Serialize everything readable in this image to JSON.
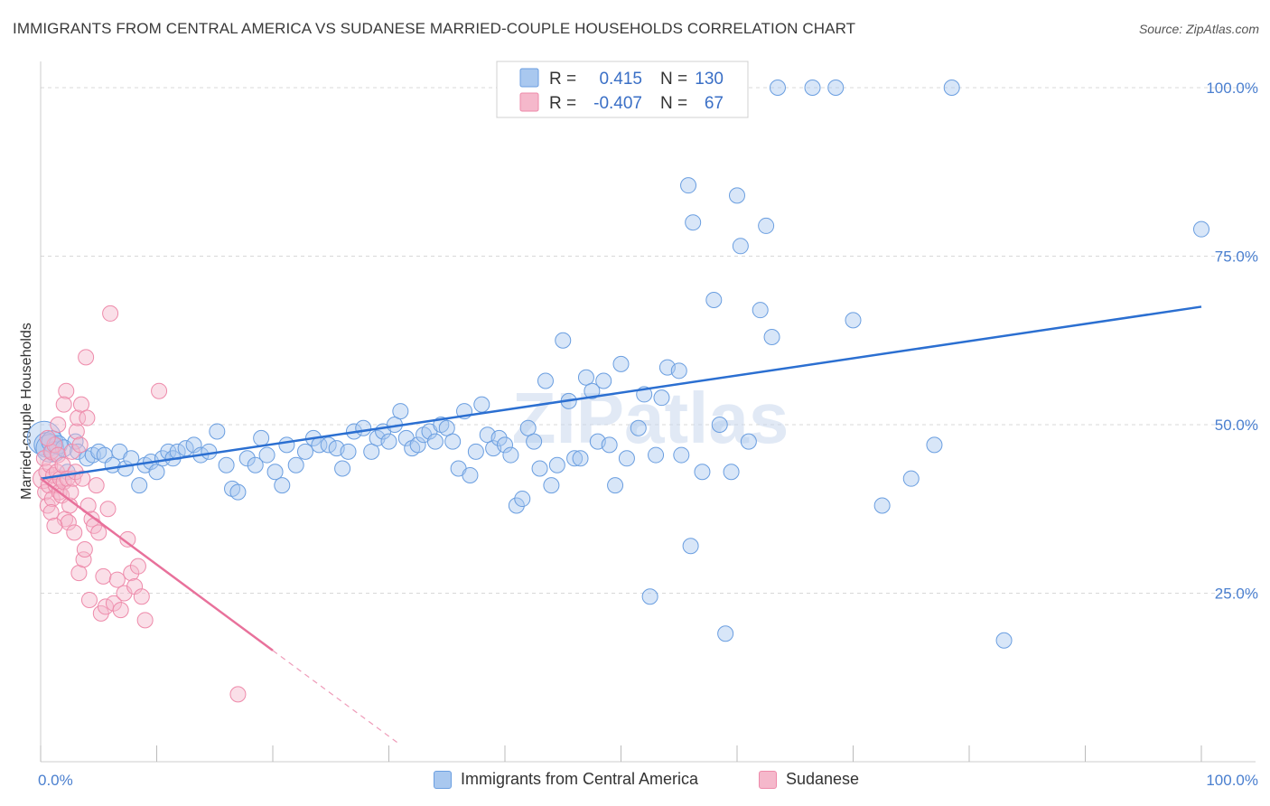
{
  "title": "IMMIGRANTS FROM CENTRAL AMERICA VS SUDANESE MARRIED-COUPLE HOUSEHOLDS CORRELATION CHART",
  "source": "Source: ZipAtlas.com",
  "watermark": "ZIPatlas",
  "colors": {
    "blue_fill": "#a9c8ef",
    "blue_stroke": "#6a9ee0",
    "blue_line": "#2b6fd1",
    "pink_fill": "#f5b8cb",
    "pink_stroke": "#ee8aaa",
    "pink_line": "#e8719b",
    "grid": "#d8d8d8",
    "tick_label": "#4a7fcf"
  },
  "legend": {
    "rows": [
      {
        "r_label": "R =",
        "r_value": "0.415",
        "n_label": "N =",
        "n_value": "130"
      },
      {
        "r_label": "R =",
        "r_value": "-0.407",
        "n_label": "N =",
        "n_value": "67"
      }
    ]
  },
  "bottom_legend": [
    {
      "name": "Immigrants from Central America"
    },
    {
      "name": "Sudanese"
    }
  ],
  "chart_data": {
    "type": "scatter",
    "title": "IMMIGRANTS FROM CENTRAL AMERICA VS SUDANESE MARRIED-COUPLE HOUSEHOLDS CORRELATION CHART",
    "xlabel": "",
    "ylabel": "Married-couple Households",
    "xlim": [
      0,
      100
    ],
    "ylim": [
      0,
      105
    ],
    "x_tick_labels": [
      "0.0%",
      "100.0%"
    ],
    "y_ticks": [
      25,
      50,
      75,
      100
    ],
    "y_tick_labels": [
      "25.0%",
      "50.0%",
      "75.0%",
      "100.0%"
    ],
    "grid": "horizontal dashed",
    "legend_position": "top-center",
    "series": [
      {
        "name": "Immigrants from Central America",
        "color": "#a9c8ef",
        "r": 0.415,
        "n": 130,
        "trend": {
          "x": [
            0,
            100
          ],
          "y": [
            42.0,
            67.5
          ],
          "style": "solid"
        },
        "points": [
          [
            0.3,
            48,
            2.2
          ],
          [
            0.5,
            47,
            1.6
          ],
          [
            0.8,
            46.5,
            1.8
          ],
          [
            1.0,
            47.5,
            1.4
          ],
          [
            1.2,
            46,
            1.3
          ],
          [
            1.5,
            47,
            1.2
          ],
          [
            2.0,
            46.5,
            1.1
          ],
          [
            2.3,
            43,
            1
          ],
          [
            3.0,
            47.5,
            1
          ],
          [
            3.2,
            46,
            1
          ],
          [
            4.0,
            45,
            1
          ],
          [
            4.5,
            45.5,
            1
          ],
          [
            5.0,
            46,
            1
          ],
          [
            5.5,
            45.5,
            1
          ],
          [
            6.2,
            44,
            1
          ],
          [
            6.8,
            46,
            1
          ],
          [
            7.3,
            43.5,
            1
          ],
          [
            7.8,
            45,
            1
          ],
          [
            8.5,
            41,
            1
          ],
          [
            9.0,
            44,
            1
          ],
          [
            9.5,
            44.5,
            1
          ],
          [
            10.0,
            43,
            1
          ],
          [
            10.5,
            45,
            1
          ],
          [
            11.0,
            46,
            1
          ],
          [
            11.4,
            45,
            1
          ],
          [
            11.8,
            46,
            1
          ],
          [
            12.5,
            46.5,
            1
          ],
          [
            13.2,
            47,
            1
          ],
          [
            13.8,
            45.5,
            1
          ],
          [
            14.5,
            46,
            1
          ],
          [
            15.2,
            49,
            1
          ],
          [
            16.0,
            44,
            1
          ],
          [
            16.5,
            40.5,
            1
          ],
          [
            17.0,
            40,
            1
          ],
          [
            17.8,
            45,
            1
          ],
          [
            18.5,
            44,
            1
          ],
          [
            19.0,
            48,
            1
          ],
          [
            19.5,
            45.5,
            1
          ],
          [
            20.2,
            43,
            1
          ],
          [
            20.8,
            41,
            1
          ],
          [
            21.2,
            47,
            1
          ],
          [
            22.0,
            44,
            1
          ],
          [
            22.8,
            46,
            1
          ],
          [
            23.5,
            48,
            1
          ],
          [
            24.0,
            47,
            1
          ],
          [
            24.8,
            47,
            1
          ],
          [
            25.5,
            46.5,
            1
          ],
          [
            26.0,
            43.5,
            1
          ],
          [
            26.5,
            46,
            1
          ],
          [
            27.0,
            49,
            1
          ],
          [
            27.8,
            49.5,
            1
          ],
          [
            28.5,
            46,
            1
          ],
          [
            29.0,
            48,
            1
          ],
          [
            29.5,
            49,
            1
          ],
          [
            30.0,
            47.5,
            1
          ],
          [
            30.5,
            50,
            1
          ],
          [
            31.0,
            52,
            1
          ],
          [
            31.5,
            48,
            1
          ],
          [
            32.0,
            46.5,
            1
          ],
          [
            32.5,
            47,
            1
          ],
          [
            33.0,
            48.5,
            1
          ],
          [
            33.5,
            49,
            1
          ],
          [
            34.0,
            47.5,
            1
          ],
          [
            34.5,
            50,
            1
          ],
          [
            35.0,
            49.5,
            1
          ],
          [
            35.5,
            47.5,
            1
          ],
          [
            36.0,
            43.5,
            1
          ],
          [
            36.5,
            52,
            1
          ],
          [
            37.0,
            42.5,
            1
          ],
          [
            37.5,
            46,
            1
          ],
          [
            38.0,
            53,
            1
          ],
          [
            38.5,
            48.5,
            1
          ],
          [
            39.0,
            46.5,
            1
          ],
          [
            39.5,
            48,
            1
          ],
          [
            40.0,
            47,
            1
          ],
          [
            40.5,
            45.5,
            1
          ],
          [
            41.0,
            38,
            1
          ],
          [
            41.5,
            39,
            1
          ],
          [
            42.0,
            49.5,
            1
          ],
          [
            42.5,
            47.5,
            1
          ],
          [
            43.0,
            43.5,
            1
          ],
          [
            43.5,
            56.5,
            1
          ],
          [
            44.0,
            41,
            1
          ],
          [
            44.5,
            44,
            1
          ],
          [
            45.0,
            62.5,
            1
          ],
          [
            45.5,
            53.5,
            1
          ],
          [
            46.0,
            45,
            1
          ],
          [
            46.5,
            45,
            1
          ],
          [
            47.0,
            57,
            1
          ],
          [
            47.5,
            55,
            1
          ],
          [
            48.0,
            47.5,
            1
          ],
          [
            48.5,
            56.5,
            1
          ],
          [
            49.0,
            47,
            1
          ],
          [
            49.5,
            41,
            1
          ],
          [
            50.0,
            59,
            1
          ],
          [
            50.5,
            45,
            1
          ],
          [
            51.5,
            49.5,
            1
          ],
          [
            52.0,
            54.5,
            1
          ],
          [
            52.5,
            24.5,
            1
          ],
          [
            53.0,
            45.5,
            1
          ],
          [
            53.5,
            54,
            1
          ],
          [
            54.0,
            58.5,
            1
          ],
          [
            55.0,
            58,
            1
          ],
          [
            55.2,
            45.5,
            1
          ],
          [
            55.8,
            85.5,
            1
          ],
          [
            56.0,
            32,
            1
          ],
          [
            56.2,
            80,
            1
          ],
          [
            57.0,
            43,
            1
          ],
          [
            58.0,
            68.5,
            1
          ],
          [
            58.5,
            50,
            1
          ],
          [
            59.0,
            19,
            1
          ],
          [
            59.5,
            43,
            1
          ],
          [
            60.0,
            84,
            1
          ],
          [
            60.3,
            76.5,
            1
          ],
          [
            61.0,
            47.5,
            1
          ],
          [
            62.0,
            67,
            1
          ],
          [
            62.5,
            79.5,
            1
          ],
          [
            63.0,
            63,
            1
          ],
          [
            63.5,
            100,
            1
          ],
          [
            66.5,
            100,
            1
          ],
          [
            68.5,
            100,
            1
          ],
          [
            70.0,
            65.5,
            1
          ],
          [
            72.5,
            38,
            1
          ],
          [
            75.0,
            42,
            1
          ],
          [
            77.0,
            47,
            1
          ],
          [
            78.5,
            100,
            1
          ],
          [
            83.0,
            18,
            1
          ],
          [
            100.0,
            79,
            1
          ]
        ]
      },
      {
        "name": "Sudanese",
        "color": "#f5b8cb",
        "r": -0.407,
        "n": 67,
        "trend": {
          "x": [
            0,
            20
          ],
          "y": [
            42.0,
            16.5
          ],
          "style": "solid",
          "extension": {
            "x": [
              20,
              31
            ],
            "y": [
              16.5,
              2.5
            ],
            "style": "dashed"
          }
        },
        "points": [
          [
            0.2,
            42,
            1.3
          ],
          [
            0.3,
            45,
            1
          ],
          [
            0.4,
            40,
            1
          ],
          [
            0.5,
            43,
            1
          ],
          [
            0.6,
            38,
            1
          ],
          [
            0.7,
            41,
            1
          ],
          [
            0.8,
            44,
            1
          ],
          [
            0.9,
            46,
            1
          ],
          [
            1.0,
            39,
            1
          ],
          [
            1.1,
            42.5,
            1
          ],
          [
            1.2,
            47,
            1
          ],
          [
            1.3,
            41,
            1
          ],
          [
            1.4,
            43,
            1
          ],
          [
            1.5,
            45.5,
            1
          ],
          [
            1.6,
            40,
            1
          ],
          [
            1.7,
            42,
            1
          ],
          [
            1.8,
            39.5,
            1
          ],
          [
            1.9,
            44,
            1
          ],
          [
            2.0,
            41.5,
            1
          ],
          [
            2.1,
            36,
            1
          ],
          [
            2.2,
            55,
            1
          ],
          [
            2.3,
            42,
            1
          ],
          [
            2.4,
            35.5,
            1
          ],
          [
            2.5,
            38,
            1
          ],
          [
            2.6,
            40,
            1
          ],
          [
            2.7,
            46,
            1
          ],
          [
            2.8,
            42,
            1
          ],
          [
            2.9,
            34,
            1
          ],
          [
            3.0,
            43,
            1
          ],
          [
            3.1,
            49,
            1
          ],
          [
            3.2,
            51,
            1
          ],
          [
            3.3,
            28,
            1
          ],
          [
            3.4,
            47,
            1
          ],
          [
            3.5,
            53,
            1
          ],
          [
            3.6,
            42,
            1
          ],
          [
            3.7,
            30,
            1
          ],
          [
            3.8,
            31.5,
            1
          ],
          [
            3.9,
            60,
            1
          ],
          [
            4.0,
            51,
            1
          ],
          [
            4.1,
            38,
            1
          ],
          [
            4.2,
            24,
            1
          ],
          [
            4.4,
            36,
            1
          ],
          [
            4.6,
            35,
            1
          ],
          [
            4.8,
            41,
            1
          ],
          [
            5.0,
            34,
            1
          ],
          [
            5.2,
            22,
            1
          ],
          [
            5.4,
            27.5,
            1
          ],
          [
            5.6,
            23,
            1
          ],
          [
            5.8,
            37.5,
            1
          ],
          [
            6.0,
            66.5,
            1
          ],
          [
            6.3,
            23.5,
            1
          ],
          [
            6.6,
            27,
            1
          ],
          [
            6.9,
            22.5,
            1
          ],
          [
            7.2,
            25,
            1
          ],
          [
            7.5,
            33,
            1
          ],
          [
            7.8,
            28,
            1
          ],
          [
            8.1,
            26,
            1
          ],
          [
            8.4,
            29,
            1
          ],
          [
            8.7,
            24.5,
            1
          ],
          [
            9.0,
            21,
            1
          ],
          [
            10.2,
            55,
            1
          ],
          [
            0.6,
            48,
            1
          ],
          [
            1.5,
            50,
            1
          ],
          [
            2.0,
            53,
            1
          ],
          [
            0.9,
            37,
            1
          ],
          [
            1.2,
            35,
            1
          ],
          [
            17.0,
            10,
            1
          ]
        ]
      }
    ]
  }
}
